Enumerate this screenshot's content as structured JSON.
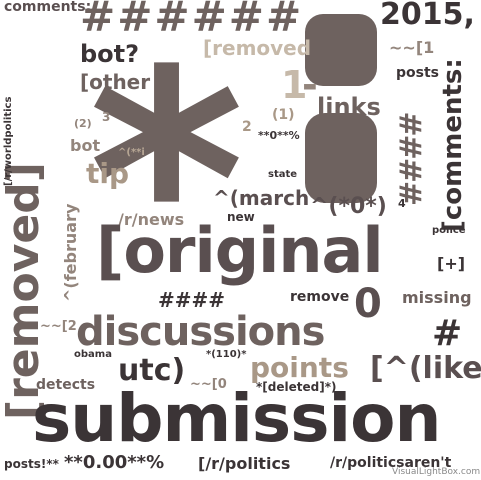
{
  "cloud": {
    "submission": "submission",
    "original": "[original",
    "removed_big": "[removed]",
    "asterisk": "*",
    "hashes_top": "######",
    "year": "2015,",
    "discussions": "discussions",
    "points": "points",
    "utc": "utc)",
    "like": "[^(like",
    "comments_right": "[comments:",
    "comments_top": "comments:",
    "bot_q": "bot?",
    "other": "[other",
    "removed_small": "[removed",
    "links": "links",
    "num_1": "1",
    "tilde_1": "~~[1",
    "posts": "posts",
    "tip": "tip",
    "bot": "bot",
    "march": "^(march",
    "new": "new",
    "state": "state",
    "star_o": "^(*0*)",
    "sup4": "4",
    "police": "police",
    "r_news": "/r/news",
    "february": "^(february",
    "hashes_mid": "####",
    "remove": "remove",
    "missing": "missing",
    "plus": "[+]",
    "zero": "0",
    "hash_single": "#",
    "tilde_2": "~~[2",
    "obama": "obama",
    "detects": "detects",
    "one10": "*(110)*",
    "tilde_0": "~~[0",
    "deleted": "*[deleted]*)",
    "posts_bang": "posts!**",
    "bold0": "**0.00**%",
    "r_politics": "[/r/politics",
    "r_politicsarent": "/r/politicsaren't",
    "worldpolitics": "[/r/worldpolitics",
    "p2": "(2)",
    "n3": "3",
    "n2": "2",
    "paren1": "(1)",
    "percent0": "**0**%",
    "caret_i": "^(**i",
    "dash": "-",
    "posts_small": "posts",
    "hashes_right": "####",
    "watermark": "VisualLightBox.com"
  }
}
